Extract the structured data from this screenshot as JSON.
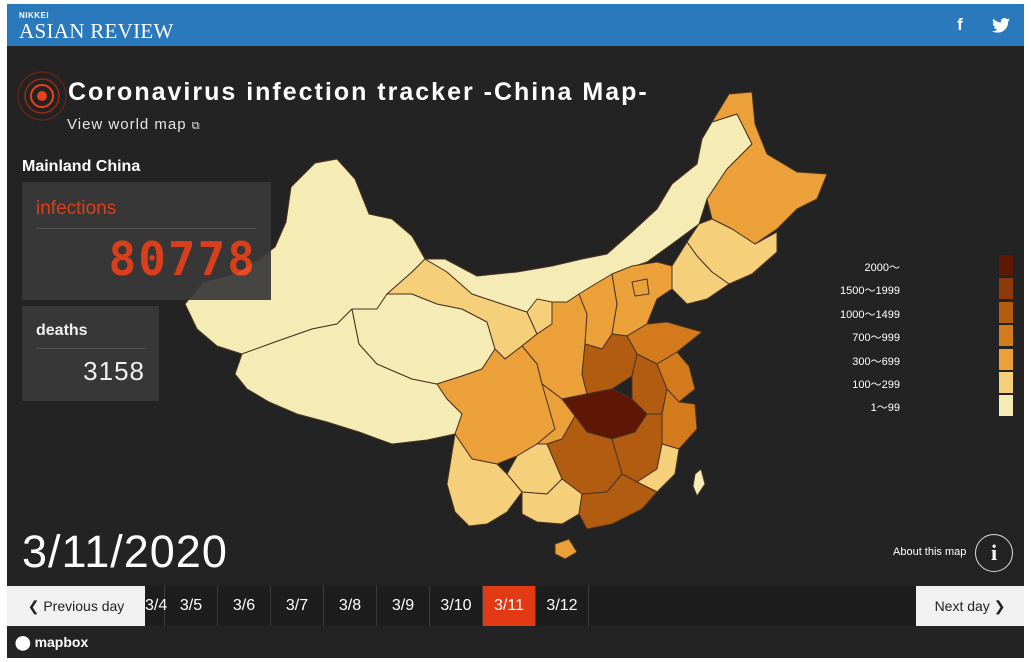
{
  "header": {
    "brand_small": "NIKKEI",
    "brand_big": "ASIAN REVIEW",
    "social": [
      {
        "name": "facebook",
        "glyph": "f"
      },
      {
        "name": "twitter",
        "glyph": "twitter-bird"
      }
    ]
  },
  "page": {
    "title": "Coronavirus infection tracker -China Map-",
    "world_link": "View world map",
    "region": "Mainland China"
  },
  "stats": {
    "infections_label": "infections",
    "infections_value": "80778",
    "deaths_label": "deaths",
    "deaths_value": "3158"
  },
  "current_date": "3/11/2020",
  "about": {
    "label": "About this map",
    "icon": "info-icon",
    "glyph": "i"
  },
  "legend": [
    {
      "label": "2000〜",
      "color": "#5e1705"
    },
    {
      "label": "1500〜1999",
      "color": "#8c3a0a"
    },
    {
      "label": "1000〜1499",
      "color": "#b25c12"
    },
    {
      "label": "700〜999",
      "color": "#d27a1c"
    },
    {
      "label": "300〜699",
      "color": "#eba03a"
    },
    {
      "label": "100〜299",
      "color": "#f6cf7b"
    },
    {
      "label": "1〜99",
      "color": "#f5ebb4"
    }
  ],
  "timeline": {
    "prev_label": "Previous day",
    "next_label": "Next day",
    "days": [
      "3/4",
      "3/5",
      "3/6",
      "3/7",
      "3/8",
      "3/9",
      "3/10",
      "3/11",
      "3/12"
    ],
    "active": "3/11"
  },
  "footer": {
    "mapbox": "mapbox"
  },
  "colors": {
    "header_bg": "#2a79bd",
    "page_bg": "#232323",
    "accent_red": "#e8421c",
    "active_day": "#e13a15"
  }
}
